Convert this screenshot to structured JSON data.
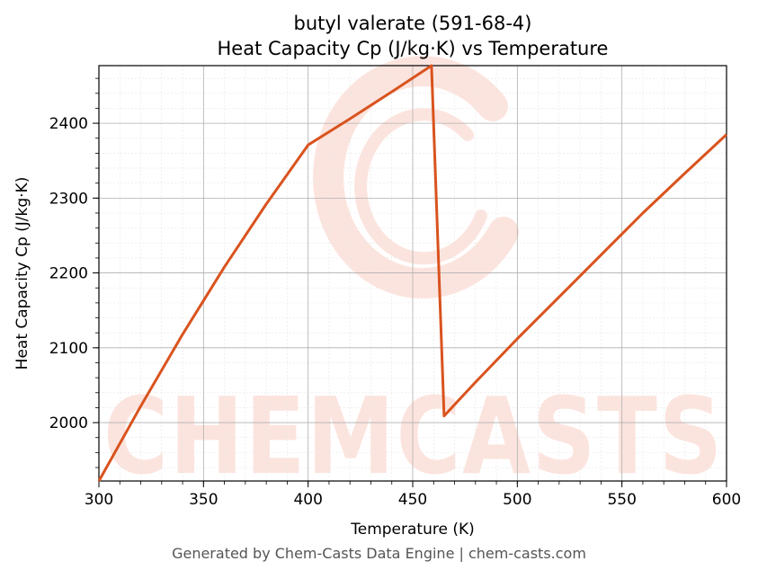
{
  "chart_data": {
    "type": "line",
    "title_line1": "butyl valerate (591-68-4)",
    "title_line2": "Heat Capacity Cp (J/kg·K) vs Temperature",
    "xlabel": "Temperature (K)",
    "ylabel": "Heat Capacity Cp (J/kg·K)",
    "xlim": [
      300,
      600
    ],
    "ylim": [
      1922,
      2477
    ],
    "xticks": [
      300,
      350,
      400,
      450,
      500,
      550,
      600
    ],
    "yticks": [
      2000,
      2100,
      2200,
      2300,
      2400
    ],
    "grid": true,
    "series": [
      {
        "color": "#d9531e",
        "x": [
          300,
          320,
          340,
          360,
          380,
          400,
          420,
          440,
          459,
          465,
          480,
          500,
          520,
          540,
          560,
          580,
          600
        ],
        "y": [
          1922,
          2022,
          2118,
          2208,
          2292,
          2371,
          2406,
          2442,
          2477,
          2009,
          2054,
          2112,
          2168,
          2224,
          2280,
          2333,
          2385
        ]
      }
    ]
  },
  "watermark": "CHEMCASTS",
  "footer": "Generated by Chem-Casts Data Engine | chem-casts.com"
}
